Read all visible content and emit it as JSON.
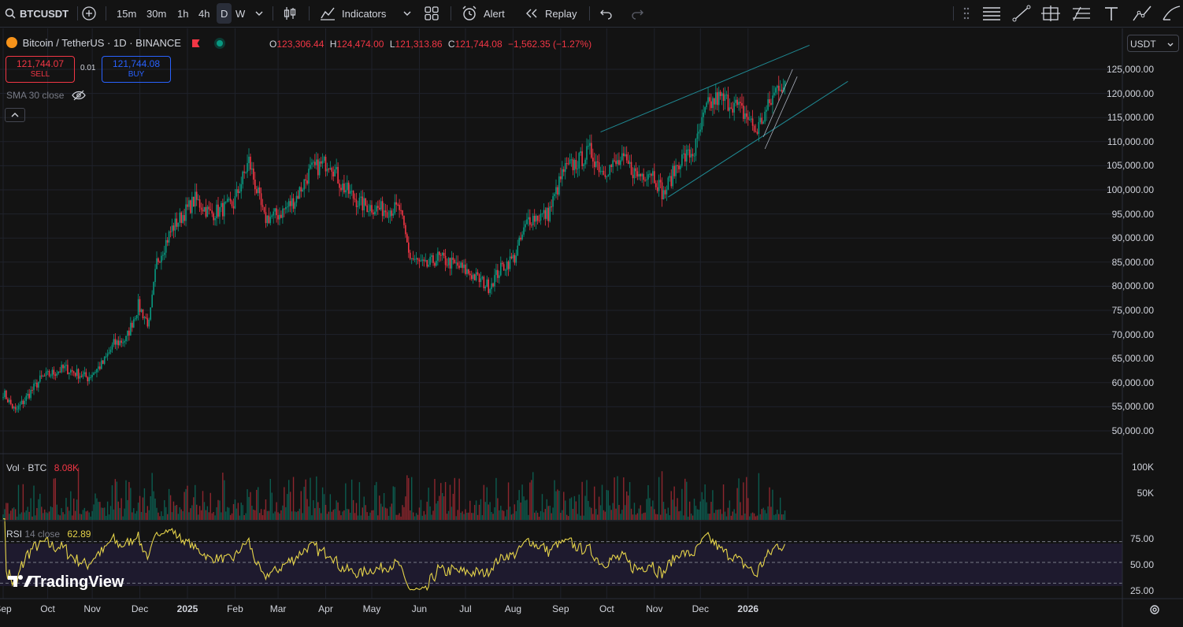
{
  "toolbar": {
    "symbol": "BTCUSDT",
    "timeframes": [
      "15m",
      "30m",
      "1h",
      "4h",
      "D",
      "W"
    ],
    "active_timeframe": "D",
    "indicators_label": "Indicators",
    "alert_label": "Alert",
    "replay_label": "Replay"
  },
  "legend": {
    "title": "Bitcoin / TetherUS · 1D · BINANCE",
    "o_label": "O",
    "o": "123,306.44",
    "h_label": "H",
    "h": "124,474.00",
    "l_label": "L",
    "l": "121,313.86",
    "c_label": "C",
    "c": "121,744.08",
    "change": "−1,562.35 (−1.27%)",
    "sell_price": "121,744.07",
    "sell_label": "SELL",
    "spread": "0.01",
    "buy_price": "121,744.08",
    "buy_label": "BUY",
    "sma": "SMA 30 close"
  },
  "currency": "USDT",
  "price_axis": [
    "125,000.00",
    "120,000.00",
    "115,000.00",
    "110,000.00",
    "105,000.00",
    "100,000.00",
    "95,000.00",
    "90,000.00",
    "85,000.00",
    "80,000.00",
    "75,000.00",
    "70,000.00",
    "65,000.00",
    "60,000.00",
    "55,000.00",
    "50,000.00"
  ],
  "volume": {
    "label": "Vol · BTC",
    "value": "8.08K",
    "axis": [
      "100K",
      "50K"
    ]
  },
  "rsi": {
    "label": "RSI",
    "params": "14 close",
    "value": "62.89",
    "axis": [
      "75.00",
      "50.00",
      "25.00"
    ],
    "upper": 70,
    "lower": 30
  },
  "time_axis": [
    "Sep",
    "Oct",
    "Nov",
    "Dec",
    "2025",
    "Feb",
    "Mar",
    "Apr",
    "May",
    "Jun",
    "Jul",
    "Aug",
    "Sep",
    "Oct",
    "Nov",
    "Dec",
    "2026"
  ],
  "watermark": "TradingView",
  "colors": {
    "up": "#089981",
    "down": "#f23645",
    "bg": "#131313",
    "rsi_line": "#e6d44a",
    "trend": "#1f8a94"
  },
  "chart_data": {
    "type": "candlestick",
    "ylim": [
      47000,
      130000
    ],
    "anchors": [
      [
        0,
        58000
      ],
      [
        8,
        54000
      ],
      [
        25,
        61000
      ],
      [
        40,
        63000
      ],
      [
        55,
        61000
      ],
      [
        65,
        64000
      ],
      [
        72,
        68000
      ],
      [
        80,
        69000
      ],
      [
        88,
        76000
      ],
      [
        95,
        72000
      ],
      [
        100,
        85000
      ],
      [
        110,
        92000
      ],
      [
        125,
        98000
      ],
      [
        135,
        95000
      ],
      [
        150,
        97000
      ],
      [
        160,
        106000
      ],
      [
        170,
        94000
      ],
      [
        180,
        95000
      ],
      [
        190,
        98000
      ],
      [
        200,
        104000
      ],
      [
        213,
        106000
      ],
      [
        220,
        101000
      ],
      [
        233,
        97000
      ],
      [
        245,
        96000
      ],
      [
        258,
        96000
      ],
      [
        265,
        86000
      ],
      [
        275,
        84000
      ],
      [
        283,
        86000
      ],
      [
        297,
        84000
      ],
      [
        307,
        82000
      ],
      [
        316,
        80000
      ],
      [
        325,
        84000
      ],
      [
        333,
        86000
      ],
      [
        342,
        94000
      ],
      [
        355,
        95000
      ],
      [
        365,
        104000
      ],
      [
        375,
        106000
      ],
      [
        382,
        108000
      ],
      [
        390,
        104000
      ],
      [
        404,
        106000
      ],
      [
        413,
        103000
      ],
      [
        422,
        104000
      ],
      [
        430,
        99000
      ],
      [
        440,
        106000
      ],
      [
        450,
        108000
      ],
      [
        458,
        117000
      ],
      [
        465,
        119000
      ],
      [
        475,
        118000
      ],
      [
        485,
        115000
      ],
      [
        490,
        112000
      ],
      [
        498,
        117000
      ],
      [
        505,
        122000
      ],
      [
        509,
        122000
      ]
    ]
  }
}
